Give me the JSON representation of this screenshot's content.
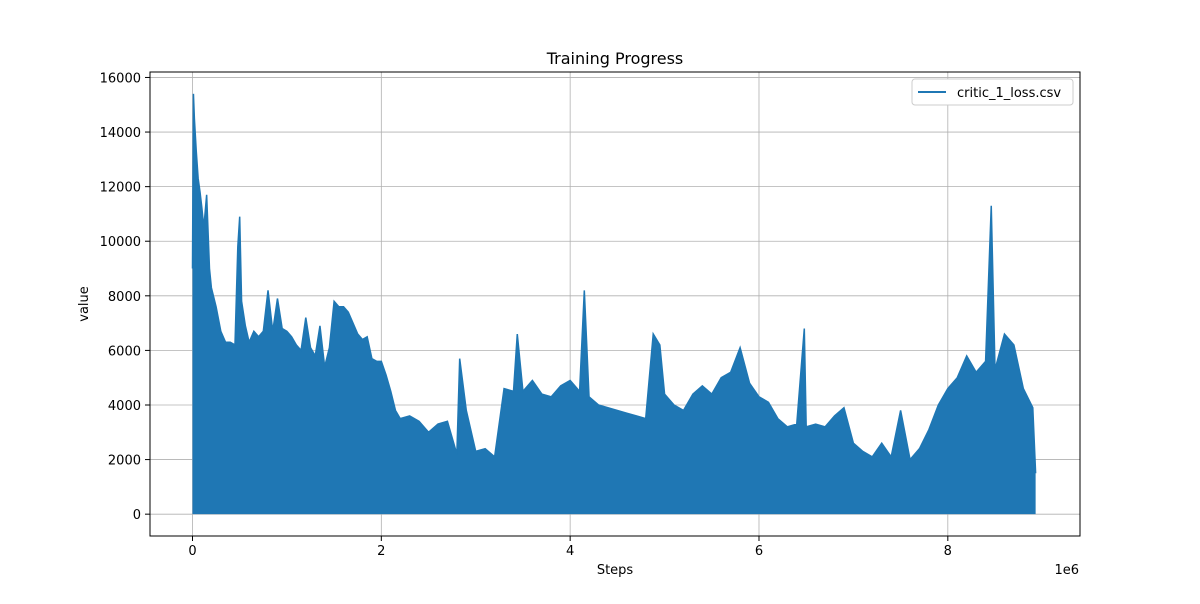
{
  "chart_data": {
    "type": "line",
    "title": "Training Progress",
    "xlabel": "Steps",
    "ylabel": "value",
    "x_offset_label": "1e6",
    "xlim": [
      -450000,
      9400000
    ],
    "ylim": [
      -800,
      16200
    ],
    "xticks": [
      0,
      2000000,
      4000000,
      6000000,
      8000000
    ],
    "xtick_labels": [
      "0",
      "2",
      "4",
      "6",
      "8"
    ],
    "yticks": [
      0,
      2000,
      4000,
      6000,
      8000,
      10000,
      12000,
      14000,
      16000
    ],
    "ytick_labels": [
      "0",
      "2000",
      "4000",
      "6000",
      "8000",
      "10000",
      "12000",
      "14000",
      "16000"
    ],
    "grid": true,
    "legend_position": "upper right",
    "series": [
      {
        "name": "critic_1_loss.csv",
        "color": "#1f77b4",
        "x": [
          0,
          10000,
          20000,
          40000,
          60000,
          80000,
          100000,
          120000,
          150000,
          180000,
          200000,
          250000,
          300000,
          350000,
          400000,
          450000,
          480000,
          500000,
          520000,
          560000,
          600000,
          650000,
          700000,
          750000,
          800000,
          850000,
          900000,
          950000,
          1000000,
          1050000,
          1100000,
          1150000,
          1200000,
          1250000,
          1300000,
          1350000,
          1400000,
          1450000,
          1500000,
          1550000,
          1600000,
          1650000,
          1700000,
          1750000,
          1800000,
          1850000,
          1900000,
          1950000,
          2000000,
          2050000,
          2100000,
          2150000,
          2200000,
          2300000,
          2400000,
          2500000,
          2600000,
          2700000,
          2800000,
          2830000,
          2900000,
          3000000,
          3100000,
          3200000,
          3300000,
          3400000,
          3440000,
          3500000,
          3600000,
          3700000,
          3800000,
          3900000,
          4000000,
          4100000,
          4150000,
          4200000,
          4300000,
          4400000,
          4500000,
          4600000,
          4700000,
          4800000,
          4880000,
          4950000,
          5000000,
          5100000,
          5200000,
          5300000,
          5400000,
          5500000,
          5600000,
          5700000,
          5800000,
          5900000,
          6000000,
          6100000,
          6200000,
          6300000,
          6400000,
          6480000,
          6500000,
          6600000,
          6700000,
          6800000,
          6900000,
          7000000,
          7100000,
          7200000,
          7300000,
          7400000,
          7500000,
          7600000,
          7700000,
          7800000,
          7900000,
          8000000,
          8100000,
          8200000,
          8300000,
          8400000,
          8460000,
          8500000,
          8600000,
          8700000,
          8800000,
          8900000,
          8930000
        ],
        "y": [
          9000,
          15400,
          14500,
          13300,
          12300,
          11800,
          11200,
          10500,
          11700,
          9000,
          8300,
          7600,
          6700,
          6300,
          6300,
          6200,
          9800,
          10900,
          7800,
          6900,
          6300,
          6700,
          6500,
          6700,
          8200,
          6700,
          7900,
          6800,
          6700,
          6500,
          6200,
          6000,
          7200,
          6100,
          5800,
          6900,
          5400,
          6100,
          7800,
          7600,
          7600,
          7400,
          7000,
          6600,
          6400,
          6500,
          5700,
          5600,
          5600,
          5100,
          4500,
          3800,
          3500,
          3600,
          3400,
          3000,
          3300,
          3400,
          2200,
          5700,
          3800,
          2300,
          2400,
          2100,
          4600,
          4500,
          6600,
          4500,
          4900,
          4400,
          4300,
          4700,
          4900,
          4500,
          8200,
          4300,
          4000,
          3900,
          3800,
          3700,
          3600,
          3500,
          6600,
          6200,
          4400,
          4000,
          3800,
          4400,
          4700,
          4400,
          5000,
          5200,
          6100,
          4800,
          4300,
          4100,
          3500,
          3200,
          3300,
          6800,
          3200,
          3300,
          3200,
          3600,
          3900,
          2600,
          2300,
          2100,
          2600,
          2100,
          3800,
          2000,
          2400,
          3100,
          4000,
          4600,
          5000,
          5800,
          5200,
          5600,
          11300,
          5300,
          6600,
          6200,
          4600,
          3900,
          1500
        ]
      }
    ]
  }
}
